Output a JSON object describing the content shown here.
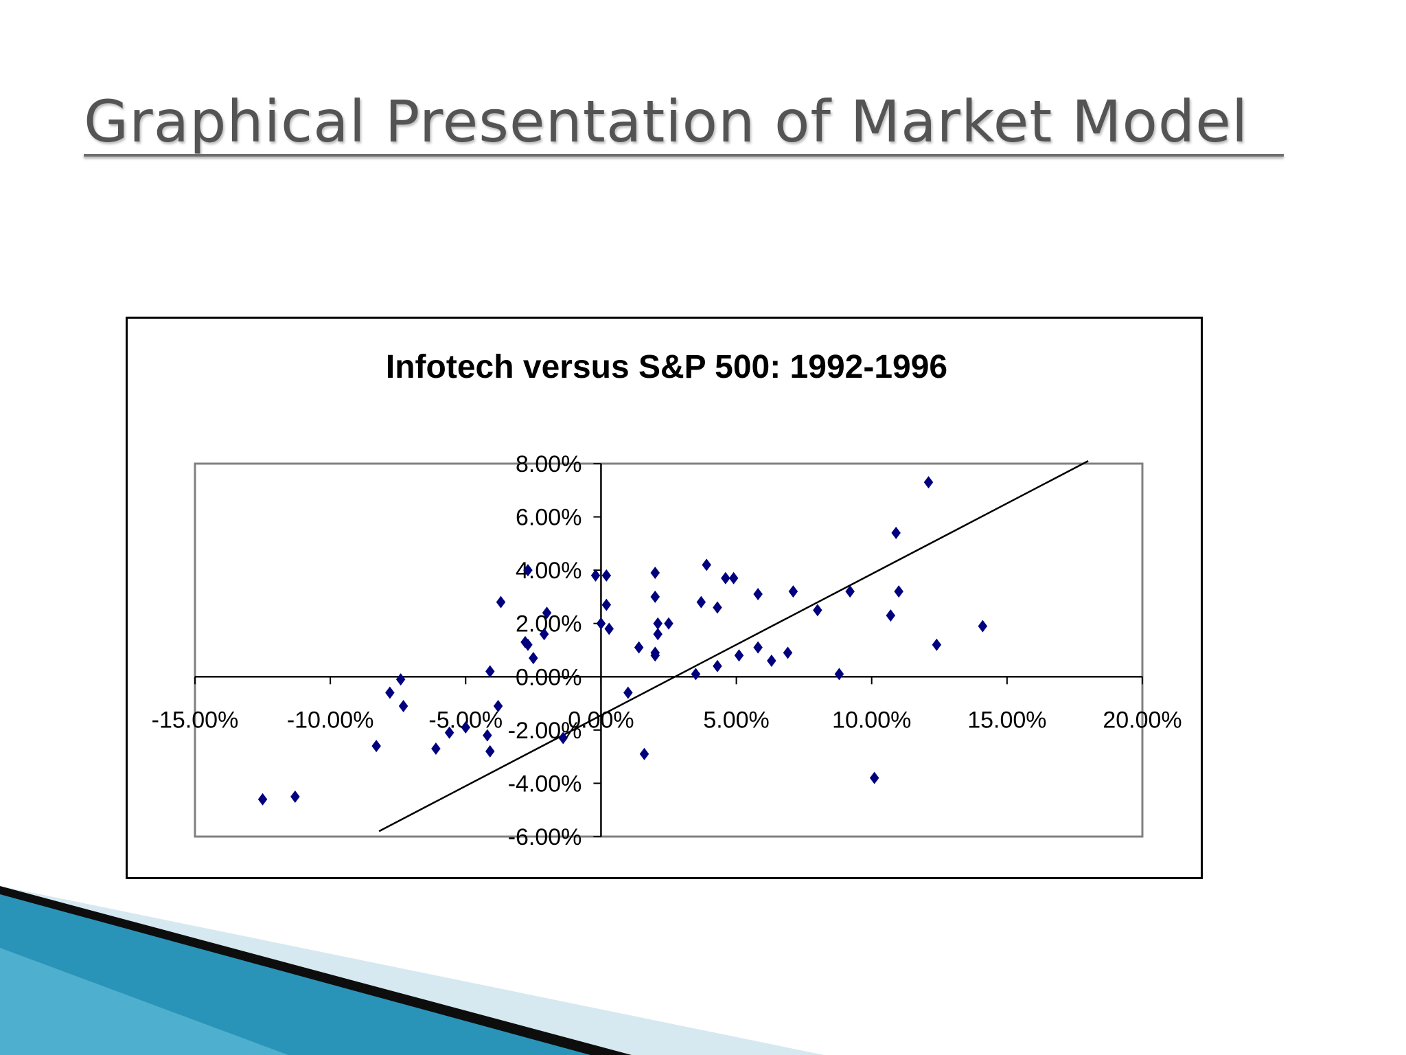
{
  "slide": {
    "title": "Graphical Presentation of Market Model"
  },
  "colors": {
    "title_text": "#545454",
    "marker": "#00007F",
    "line": "#000000",
    "plot_border": "#808080",
    "deco_dark": "#0d0d0d",
    "deco_teal": "#2a93b8",
    "deco_light": "#d6e8f0"
  },
  "chart_data": {
    "type": "scatter",
    "title": "Infotech versus S&P 500: 1992-1996",
    "xlabel": "",
    "ylabel": "",
    "xlim": [
      -0.15,
      0.2
    ],
    "ylim": [
      -0.06,
      0.08
    ],
    "x_ticks": [
      -0.15,
      -0.1,
      -0.05,
      0.0,
      0.05,
      0.1,
      0.15,
      0.2
    ],
    "x_tick_labels": [
      "-15.00%",
      "-10.00%",
      "-5.00%",
      "0.00%",
      "5.00%",
      "10.00%",
      "15.00%",
      "20.00%"
    ],
    "y_ticks": [
      -0.06,
      -0.04,
      -0.02,
      0.0,
      0.02,
      0.04,
      0.06,
      0.08
    ],
    "y_tick_labels": [
      "-6.00%",
      "-4.00%",
      "-2.00%",
      "0.00%",
      "2.00%",
      "4.00%",
      "6.00%",
      "8.00%"
    ],
    "grid": false,
    "legend": "none",
    "marker": "diamond",
    "series": [
      {
        "points": [
          [
            -0.125,
            -0.046
          ],
          [
            -0.113,
            -0.045
          ],
          [
            -0.083,
            -0.026
          ],
          [
            -0.078,
            -0.006
          ],
          [
            -0.074,
            -0.001
          ],
          [
            -0.073,
            -0.011
          ],
          [
            -0.061,
            -0.027
          ],
          [
            -0.056,
            -0.021
          ],
          [
            -0.05,
            -0.019
          ],
          [
            -0.042,
            -0.022
          ],
          [
            -0.041,
            -0.028
          ],
          [
            -0.041,
            0.002
          ],
          [
            -0.038,
            -0.011
          ],
          [
            -0.037,
            0.028
          ],
          [
            -0.028,
            0.013
          ],
          [
            -0.027,
            0.04
          ],
          [
            -0.027,
            0.012
          ],
          [
            -0.025,
            0.007
          ],
          [
            -0.021,
            0.016
          ],
          [
            -0.02,
            0.024
          ],
          [
            -0.014,
            -0.023
          ],
          [
            -0.002,
            0.038
          ],
          [
            0.0,
            0.02
          ],
          [
            0.002,
            0.038
          ],
          [
            0.002,
            0.027
          ],
          [
            0.003,
            0.018
          ],
          [
            0.01,
            -0.006
          ],
          [
            0.014,
            0.011
          ],
          [
            0.016,
            -0.029
          ],
          [
            0.02,
            0.039
          ],
          [
            0.02,
            0.03
          ],
          [
            0.02,
            0.009
          ],
          [
            0.02,
            0.008
          ],
          [
            0.021,
            0.016
          ],
          [
            0.021,
            0.02
          ],
          [
            0.025,
            0.02
          ],
          [
            0.035,
            0.001
          ],
          [
            0.037,
            0.028
          ],
          [
            0.039,
            0.042
          ],
          [
            0.043,
            0.026
          ],
          [
            0.043,
            0.004
          ],
          [
            0.046,
            0.037
          ],
          [
            0.049,
            0.037
          ],
          [
            0.051,
            0.008
          ],
          [
            0.058,
            0.031
          ],
          [
            0.058,
            0.011
          ],
          [
            0.063,
            0.006
          ],
          [
            0.069,
            0.009
          ],
          [
            0.071,
            0.032
          ],
          [
            0.08,
            0.025
          ],
          [
            0.088,
            0.001
          ],
          [
            0.092,
            0.032
          ],
          [
            0.101,
            -0.038
          ],
          [
            0.107,
            0.023
          ],
          [
            0.109,
            0.054
          ],
          [
            0.11,
            0.032
          ],
          [
            0.121,
            0.073
          ],
          [
            0.124,
            0.012
          ],
          [
            0.141,
            0.019
          ]
        ]
      }
    ],
    "trendline": {
      "x": [
        -0.082,
        0.18
      ],
      "y": [
        -0.058,
        0.081
      ]
    }
  }
}
